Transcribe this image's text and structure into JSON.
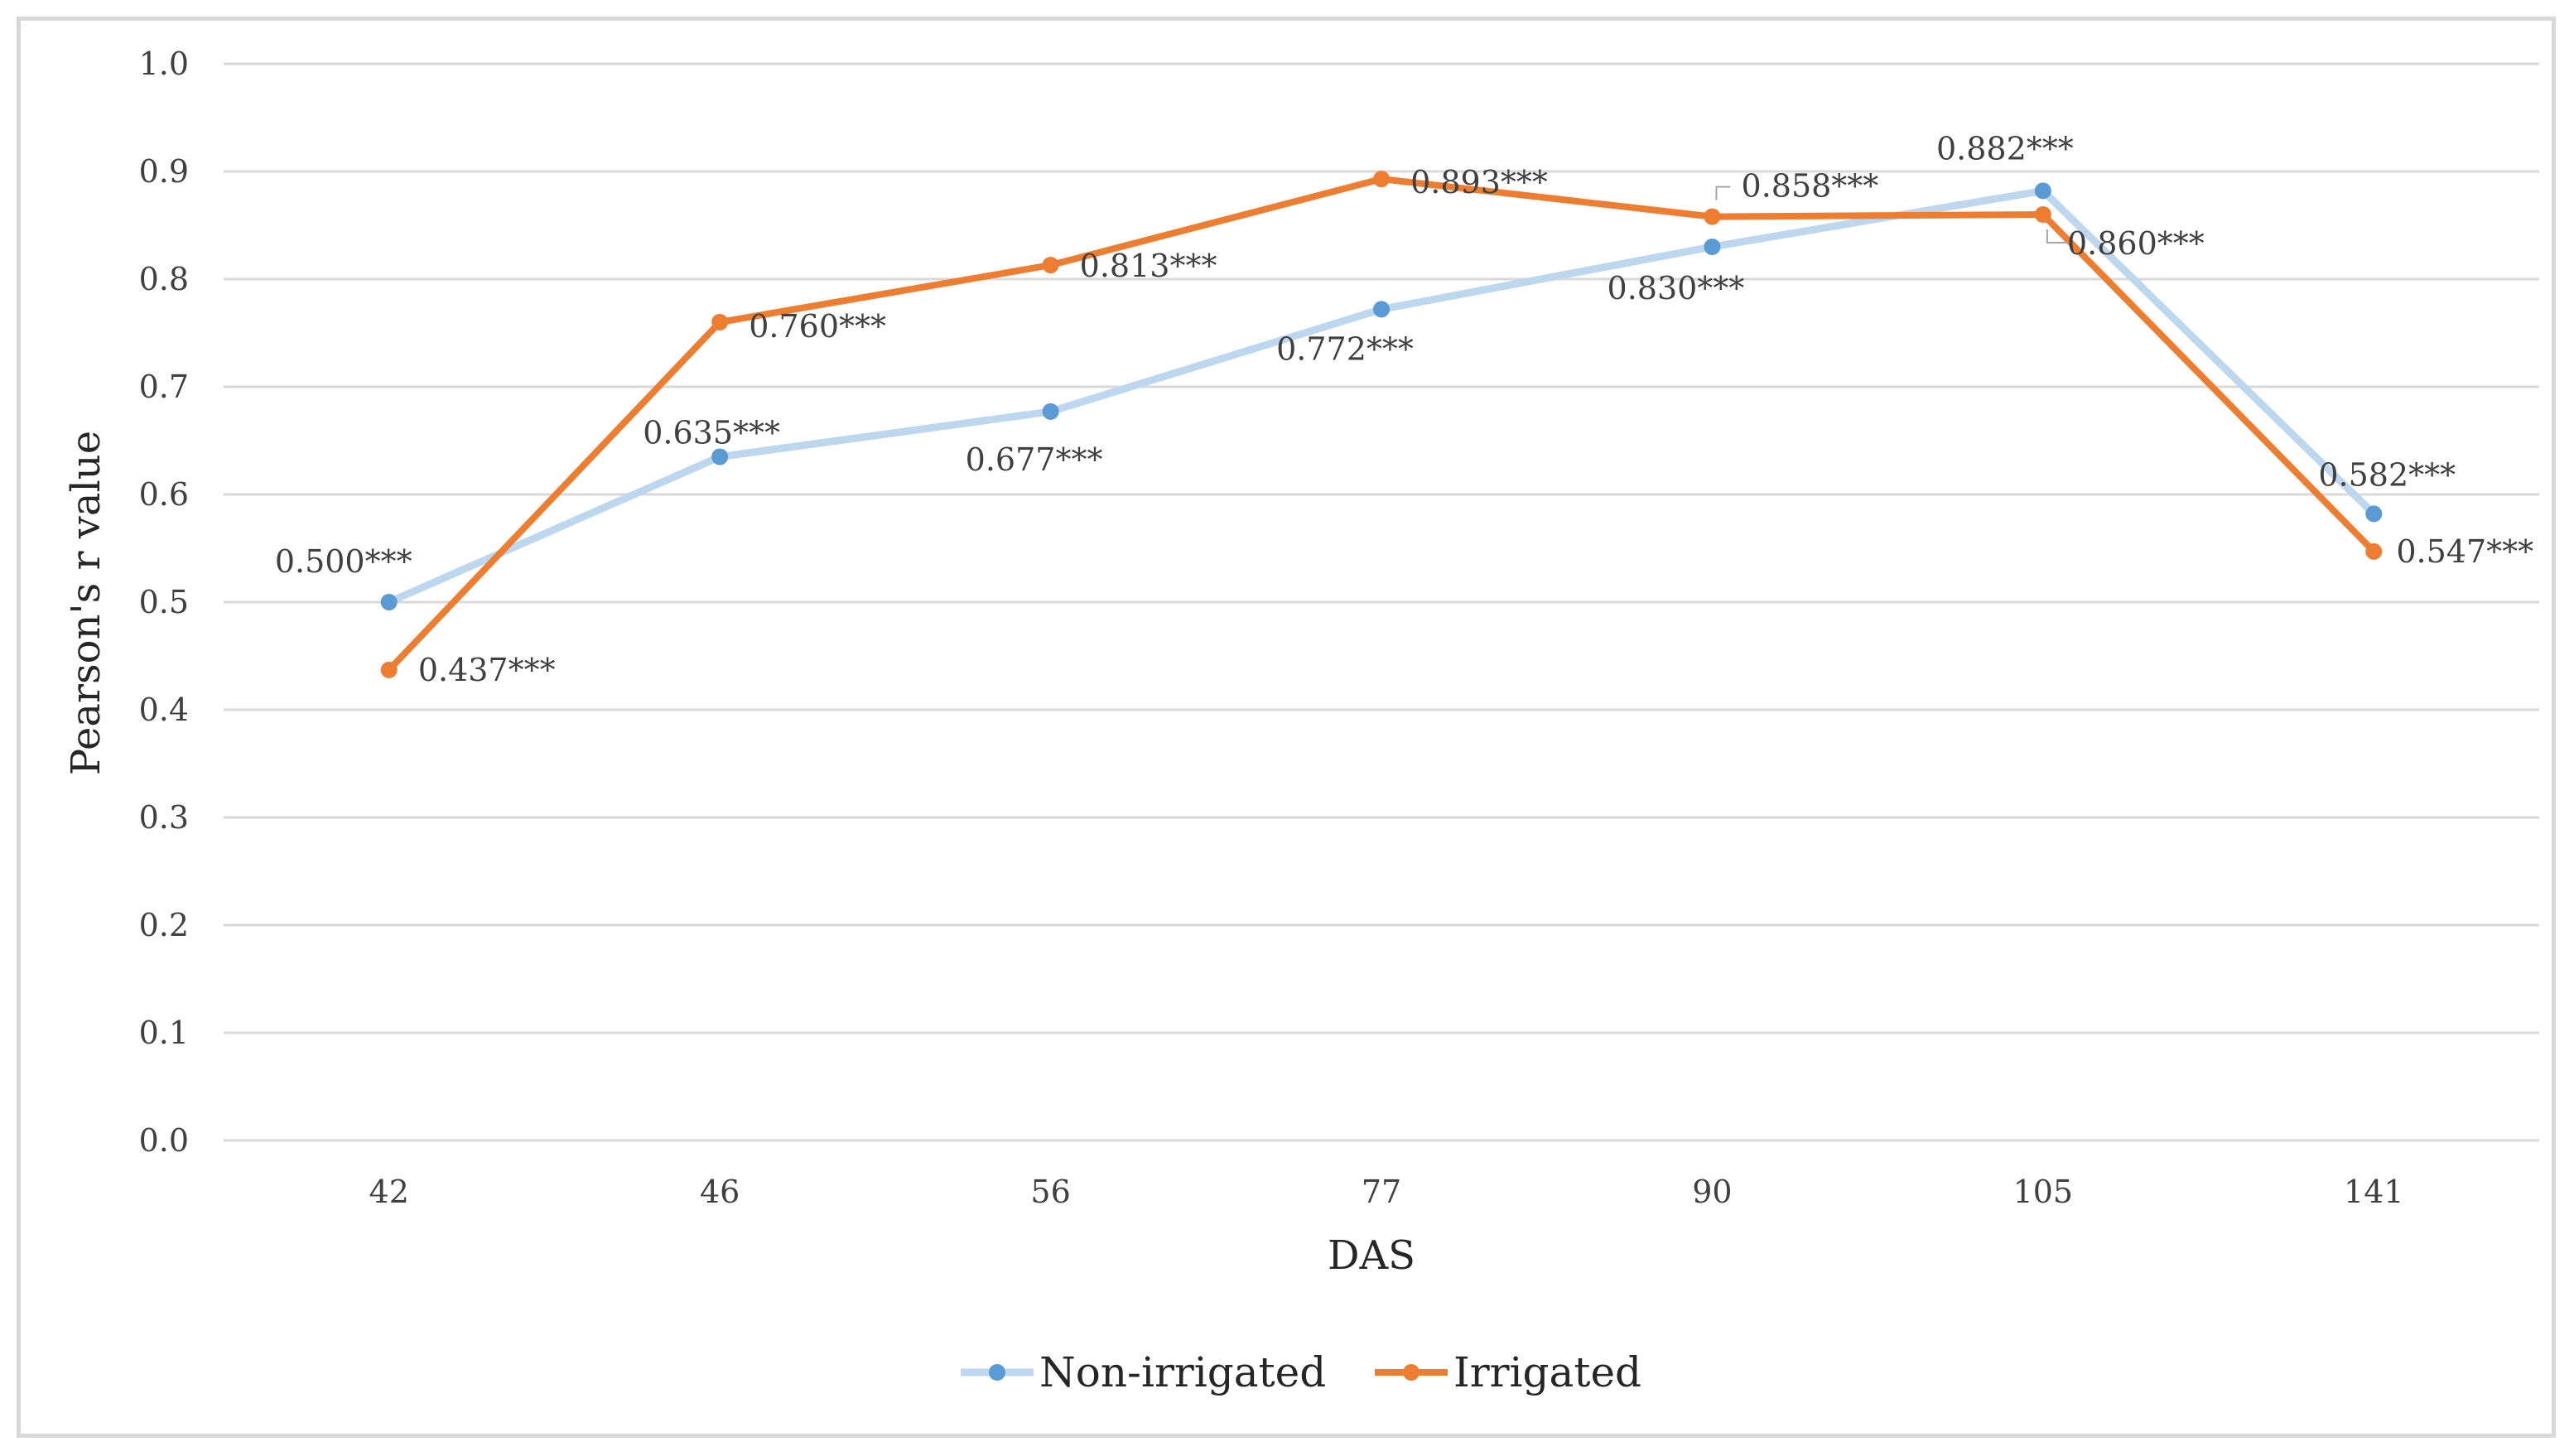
{
  "chart_data": {
    "type": "line",
    "title": "",
    "xlabel": "DAS",
    "ylabel": "Pearson's r value",
    "categories": [
      "42",
      "46",
      "56",
      "77",
      "90",
      "105",
      "141"
    ],
    "ylim": [
      0,
      1.0
    ],
    "yticks": [
      "0.0",
      "0.1",
      "0.2",
      "0.3",
      "0.4",
      "0.5",
      "0.6",
      "0.7",
      "0.8",
      "0.9",
      "1.0"
    ],
    "grid": true,
    "legend_position": "bottom",
    "series": [
      {
        "name": "Non-irrigated",
        "color": "#bdd7ee",
        "marker_color": "#5b9bd5",
        "values": [
          0.5,
          0.635,
          0.677,
          0.772,
          0.83,
          0.882,
          0.582
        ],
        "labels": [
          "0.500***",
          "0.635***",
          "0.677***",
          "0.772***",
          "0.830***",
          "0.882***",
          "0.582***"
        ]
      },
      {
        "name": "Irrigated",
        "color": "#ed7d31",
        "marker_color": "#ed7d31",
        "values": [
          0.437,
          0.76,
          0.813,
          0.893,
          0.858,
          0.86,
          0.547
        ],
        "labels": [
          "0.437***",
          "0.760***",
          "0.813***",
          "0.893***",
          "0.858***",
          "0.860***",
          "0.547***"
        ]
      }
    ]
  }
}
